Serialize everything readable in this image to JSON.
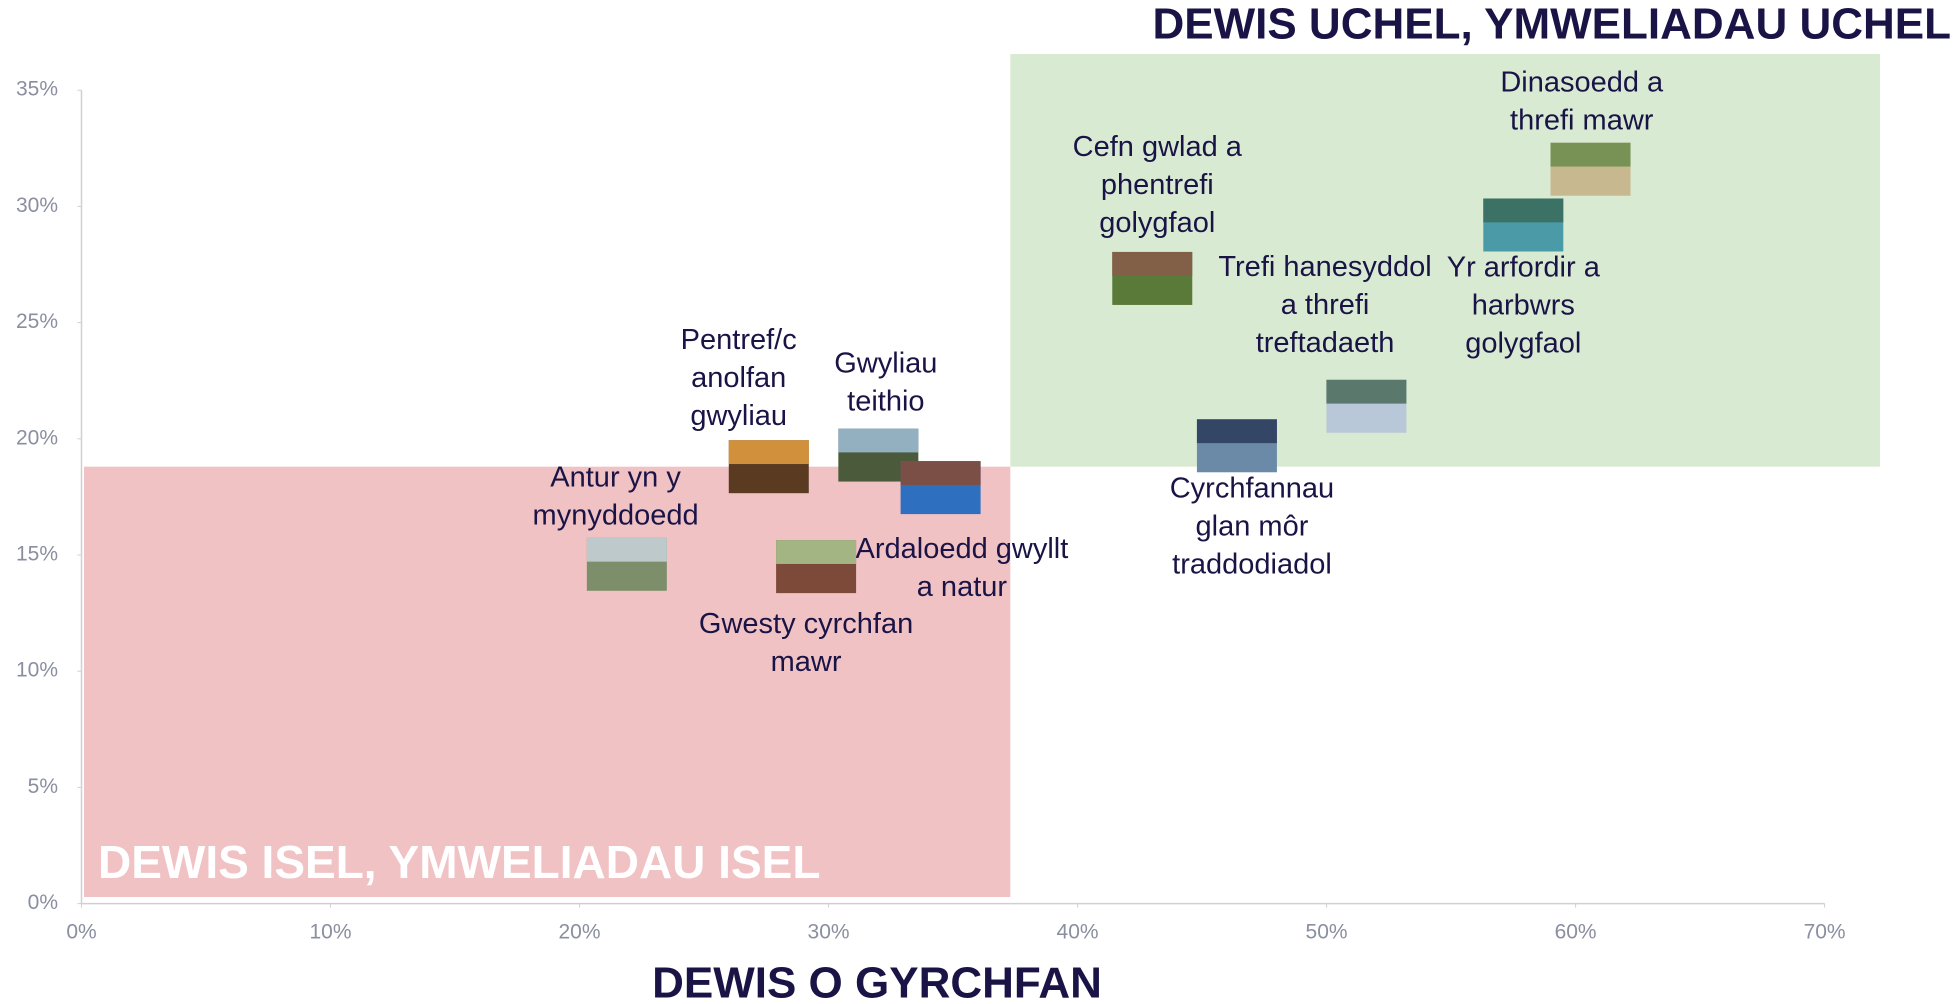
{
  "chart_data": {
    "type": "scatter",
    "title": "DEWIS UCHEL, YMWELIADAU UCHEL",
    "x_label": "DEWIS O GYRCHFAN",
    "low_quadrant_label": "DEWIS ISEL, YMWELIADAU ISEL",
    "point_labels": [
      [
        "Antur yn y",
        "mynyddoedd"
      ],
      [
        "Pentref/c",
        "anolfan",
        "gwyliau"
      ],
      [
        "Gwyliau",
        "teithio"
      ],
      [
        "Ardaloedd gwyllt",
        "a natur"
      ],
      [
        "Gwesty cyrchfan",
        "mawr"
      ],
      [
        "Cefn gwlad a",
        "phentrefi",
        "golygfaol"
      ],
      [
        "Trefi hanesyddol",
        "a threfi",
        "treftadaeth"
      ],
      [
        "Cyrchfannau",
        "glan môr",
        "traddodiadol"
      ],
      [
        "Yr arfordir a",
        "harbwrs",
        "golygfaol"
      ],
      [
        "Dinasoedd a",
        "threfi mawr"
      ]
    ],
    "x": [
      21.9,
      27.6,
      32.0,
      34.5,
      29.5,
      43.0,
      51.6,
      46.4,
      57.9,
      60.6
    ],
    "y": [
      14.6,
      18.8,
      19.3,
      17.9,
      14.5,
      26.9,
      21.4,
      19.7,
      29.2,
      31.6
    ],
    "x_threshold": 37.3,
    "y_threshold": 18.8,
    "high_color": "#d9ead3",
    "low_color": "#f0c2c4",
    "xlim": [
      0,
      70
    ],
    "ylim": [
      0,
      35
    ],
    "xticks": [
      {
        "value": 0,
        "label": "0%"
      },
      {
        "value": 10,
        "label": "10%"
      },
      {
        "value": 20,
        "label": "20%"
      },
      {
        "value": 30,
        "label": "30%"
      },
      {
        "value": 40,
        "label": "40%"
      },
      {
        "value": 50,
        "label": "50%"
      },
      {
        "value": 60,
        "label": "60%"
      },
      {
        "value": 70,
        "label": "70%"
      }
    ],
    "yticks": [
      {
        "value": 0,
        "label": "0%"
      },
      {
        "value": 5,
        "label": "5%"
      },
      {
        "value": 10,
        "label": "10%"
      },
      {
        "value": 15,
        "label": "15%"
      },
      {
        "value": 20,
        "label": "20%"
      },
      {
        "value": 25,
        "label": "25%"
      },
      {
        "value": 30,
        "label": "30%"
      },
      {
        "value": 35,
        "label": "35%"
      }
    ]
  }
}
